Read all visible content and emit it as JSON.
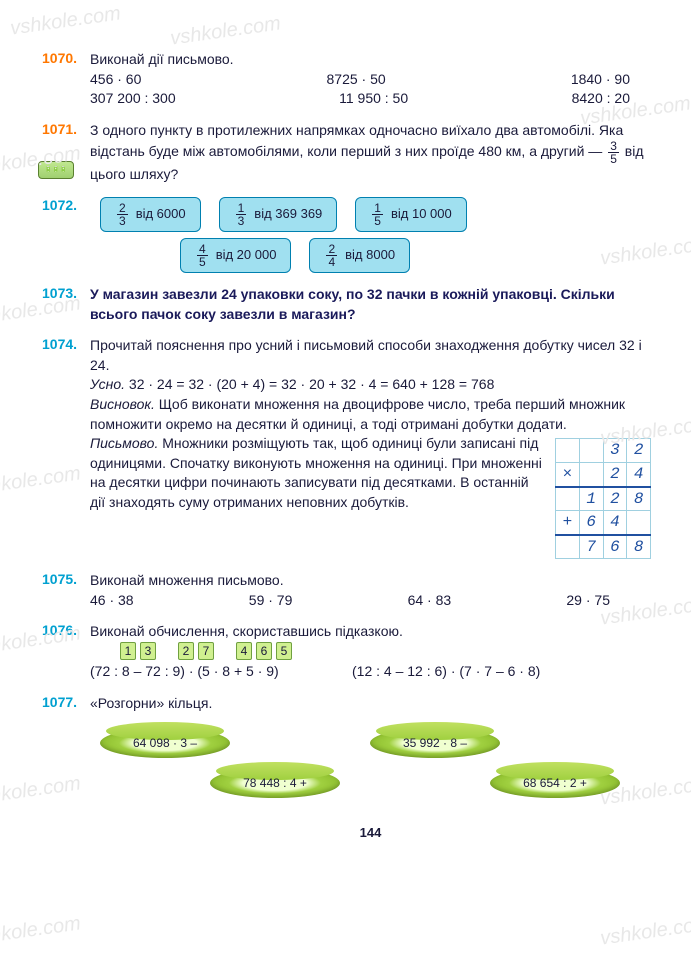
{
  "watermark": "vshkole.com",
  "ex1070": {
    "num": "1070.",
    "title": "Виконай дії письмово.",
    "row1": [
      "456 · 60",
      "8725 · 50",
      "1840 · 90"
    ],
    "row2": [
      "307 200 : 300",
      "11 950 : 50",
      "8420 : 20"
    ]
  },
  "ex1071": {
    "num": "1071.",
    "text1": "З одного пункту в протилежних напрямках одночасно виїхало два автомобілі. Яка відстань буде між автомобілями, коли перший з них проїде 480 км, а другий — ",
    "frac_n": "3",
    "frac_d": "5",
    "text2": " від цього шляху?"
  },
  "ex1072": {
    "num": "1072.",
    "pills_row1": [
      {
        "n": "2",
        "d": "3",
        "t": "від 6000"
      },
      {
        "n": "1",
        "d": "3",
        "t": "від 369 369"
      },
      {
        "n": "1",
        "d": "5",
        "t": "від 10 000"
      }
    ],
    "pills_row2": [
      {
        "n": "4",
        "d": "5",
        "t": "від 20 000"
      },
      {
        "n": "2",
        "d": "4",
        "t": "від 8000"
      }
    ]
  },
  "ex1073": {
    "num": "1073.",
    "text": "У магазин завезли 24 упаковки соку, по 32 пачки в кожній упаковці. Скільки всього пачок соку завезли в магазин?"
  },
  "ex1074": {
    "num": "1074.",
    "text1": "Прочитай пояснення про усний і письмовий способи знаходження добутку чисел 32 і 24.",
    "usno_label": "Усно.",
    "usno": " 32 · 24 = 32 · (20 + 4) = 32 · 20 + 32 · 4 = 640 + 128 = 768",
    "vysn_label": "Висновок.",
    "vysn": " Щоб виконати множення на двоцифрове число, треба перший множник помножити окремо на десятки й одиниці, а тоді отримані добутки додати.",
    "pys_label": "Письмово.",
    "pys": " Множники розміщують так, щоб одиниці були записані під одиницями. Спочатку виконують множення на одиниці. При множенні на десятки цифри починають записувати під десятками. В останній дії знаходять суму отриманих неповних добутків.",
    "grid": {
      "r1": [
        "",
        "",
        "3",
        "2"
      ],
      "r2": [
        "×",
        "",
        "2",
        "4"
      ],
      "r3": [
        "",
        "1",
        "2",
        "8"
      ],
      "r4": [
        "+",
        "6",
        "4",
        ""
      ],
      "r5": [
        "",
        "7",
        "6",
        "8"
      ]
    }
  },
  "ex1075": {
    "num": "1075.",
    "title": "Виконай множення письмово.",
    "items": [
      "46 · 38",
      "59 · 79",
      "64 · 83",
      "29 · 75"
    ]
  },
  "ex1076": {
    "num": "1076.",
    "title": "Виконай обчислення, скориставшись підказкою.",
    "hints1": [
      "1",
      "3",
      "",
      "2",
      "7",
      "",
      "4",
      "6",
      "5"
    ],
    "expr1": "(72 : 8 – 72 : 9) · (5 · 8 + 5 · 9)",
    "expr2": "(12 : 4 – 12 : 6) · (7 · 7 – 6 · 8)"
  },
  "ex1077": {
    "num": "1077.",
    "title": "«Розгорни» кільця.",
    "rings": [
      "64 098 · 3 –",
      "78 448 : 4 +",
      "35 992 · 8 –",
      "68 654 : 2 +"
    ]
  },
  "page": "144"
}
